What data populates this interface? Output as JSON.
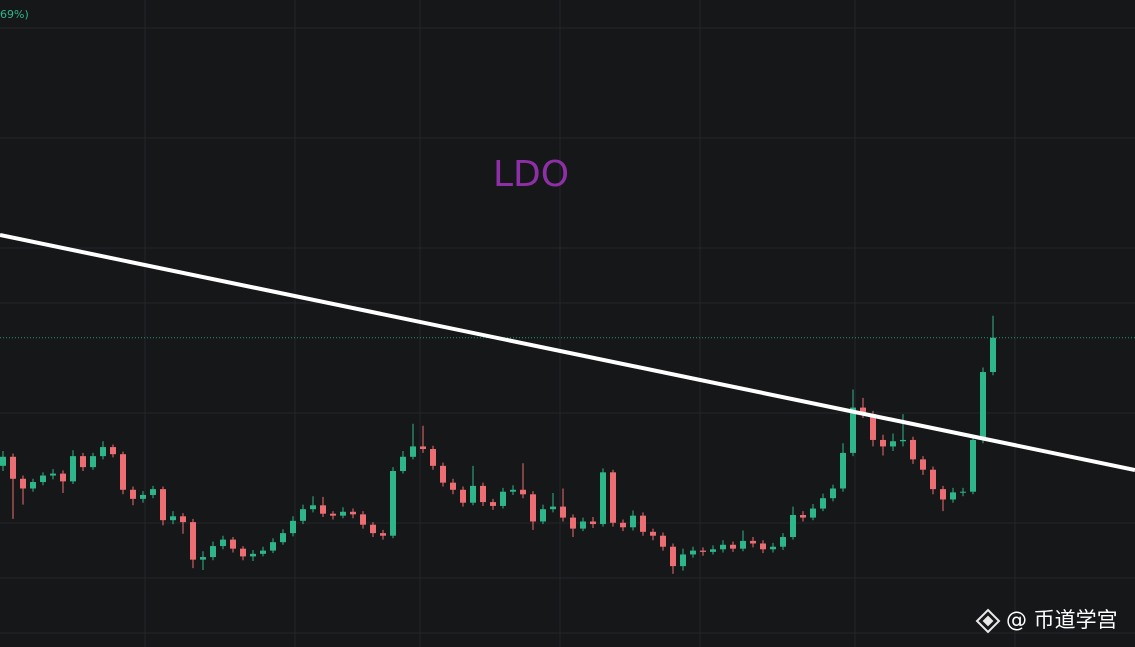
{
  "header": {
    "change_text": "69%)"
  },
  "chart_data": {
    "type": "candlestick",
    "title": "LDO",
    "ylim": [
      0,
      100
    ],
    "up_color": "#2db68a",
    "down_color": "#ec6d72",
    "open": [
      28.0,
      29.4,
      26,
      24.5,
      25.5,
      26.5,
      26.8,
      25.6,
      29.5,
      27.8,
      29.5,
      30.9,
      29.8,
      24.3,
      22.9,
      23.5,
      24.4,
      19.6,
      20.2,
      19.3,
      13.5,
      13.9,
      15.6,
      16.6,
      15.2,
      14.0,
      14.4,
      14.9,
      16.2,
      17.6,
      19.5,
      21.3,
      21.9,
      20.6,
      20.3,
      20.9,
      20.5,
      18.9,
      17.6,
      17.2,
      27.2,
      29.4,
      31.0,
      30.6,
      28.0,
      25.4,
      24.3,
      22.3,
      24.9,
      22.4,
      21.8,
      24.0,
      24.3,
      23.6,
      19.4,
      21.3,
      21.7,
      20.0,
      18.3,
      19.4,
      19.0,
      27.0,
      19.2,
      18.5,
      20.3,
      17.8,
      17.2,
      15.5,
      12.5,
      14.3,
      14.9,
      14.7,
      15.1,
      15.8,
      15.2,
      16.4,
      16.0,
      15.1,
      15.5,
      17.0,
      20.4,
      20.0,
      21.4,
      23.0,
      24.5,
      30.0,
      37.0,
      36.0,
      32.0,
      31.0,
      31.8,
      32.0,
      29.0,
      27.4,
      24.4,
      22.8,
      23.9,
      24.0,
      32.0,
      42.5
    ],
    "high": [
      30.3,
      29.9,
      26.5,
      26.0,
      27.0,
      27.5,
      27.3,
      30.4,
      30.0,
      30.0,
      31.8,
      31.3,
      30.2,
      24.8,
      24.1,
      24.9,
      24.8,
      21.0,
      20.7,
      19.8,
      14.8,
      16.3,
      17.2,
      17.0,
      15.6,
      15.0,
      15.5,
      16.8,
      18.2,
      20.2,
      22.0,
      23.3,
      23.2,
      21.0,
      21.6,
      21.4,
      21.0,
      19.3,
      18.1,
      27.8,
      30.3,
      34.5,
      34.2,
      31.1,
      28.5,
      26.0,
      24.8,
      28.0,
      25.4,
      22.9,
      24.6,
      25.0,
      28.4,
      24.1,
      22.0,
      23.8,
      24.5,
      20.5,
      20.0,
      20.1,
      27.6,
      27.4,
      19.7,
      21.1,
      20.8,
      18.3,
      17.7,
      16.0,
      15.2,
      15.5,
      15.4,
      15.7,
      16.5,
      16.3,
      18.0,
      17.0,
      16.5,
      16.1,
      17.6,
      21.7,
      21.0,
      22.1,
      23.7,
      25.1,
      31.5,
      39.8,
      38.5,
      36.5,
      32.8,
      33.0,
      36.0,
      32.5,
      29.5,
      27.9,
      24.9,
      24.6,
      24.6,
      32.6,
      43.2,
      51.2
    ],
    "low": [
      27.2,
      19.8,
      22.0,
      24.0,
      25.0,
      25.9,
      23.8,
      25.2,
      27.2,
      27.4,
      29.0,
      29.3,
      23.6,
      21.9,
      22.3,
      23.0,
      18.8,
      19.0,
      17.5,
      12.2,
      11.9,
      13.4,
      15.1,
      14.6,
      13.4,
      13.3,
      14.0,
      14.5,
      15.8,
      17.1,
      19.0,
      20.8,
      20.1,
      19.7,
      19.9,
      19.9,
      18.3,
      17.0,
      16.6,
      16.8,
      26.8,
      29.0,
      30.0,
      27.4,
      24.8,
      23.6,
      21.7,
      21.9,
      21.8,
      21.2,
      21.4,
      23.5,
      23.0,
      18.1,
      19.0,
      20.8,
      19.4,
      17.0,
      17.9,
      18.4,
      18.6,
      18.6,
      17.9,
      18.0,
      17.2,
      16.5,
      14.9,
      11.3,
      11.8,
      13.8,
      14.1,
      14.3,
      14.6,
      14.7,
      14.8,
      15.4,
      14.5,
      14.6,
      15.0,
      16.6,
      19.4,
      19.6,
      21.0,
      22.5,
      24.0,
      29.5,
      35.4,
      31.0,
      29.6,
      30.3,
      31.0,
      28.3,
      26.6,
      23.6,
      21.0,
      22.3,
      23.3,
      23.6,
      31.5,
      42.0
    ],
    "close": [
      29.4,
      26,
      24.5,
      25.5,
      26.5,
      26.8,
      25.6,
      29.5,
      27.8,
      29.5,
      30.9,
      29.8,
      24.3,
      22.9,
      23.5,
      24.4,
      19.6,
      20.2,
      19.3,
      13.5,
      13.9,
      15.6,
      16.6,
      15.2,
      14.0,
      14.4,
      14.9,
      16.2,
      17.6,
      19.5,
      21.3,
      21.9,
      20.6,
      20.3,
      20.9,
      20.5,
      18.9,
      17.6,
      17.2,
      27.2,
      29.4,
      31.0,
      30.6,
      28.0,
      25.4,
      24.3,
      22.3,
      24.9,
      22.4,
      21.8,
      24.0,
      24.3,
      23.6,
      19.4,
      21.3,
      21.7,
      20.0,
      18.3,
      19.4,
      19.0,
      27.0,
      19.2,
      18.5,
      20.3,
      17.8,
      17.2,
      15.5,
      12.5,
      14.3,
      14.9,
      14.7,
      15.1,
      15.8,
      15.2,
      16.4,
      16.0,
      15.1,
      15.5,
      17.0,
      20.4,
      20.0,
      21.4,
      23.0,
      24.5,
      30.0,
      37.0,
      36.0,
      32.0,
      31.0,
      31.8,
      32.0,
      29.0,
      27.4,
      24.4,
      22.8,
      23.9,
      24.0,
      32.0,
      42.5,
      47.8
    ]
  },
  "watermark": {
    "text": "@ 币道学宫"
  }
}
